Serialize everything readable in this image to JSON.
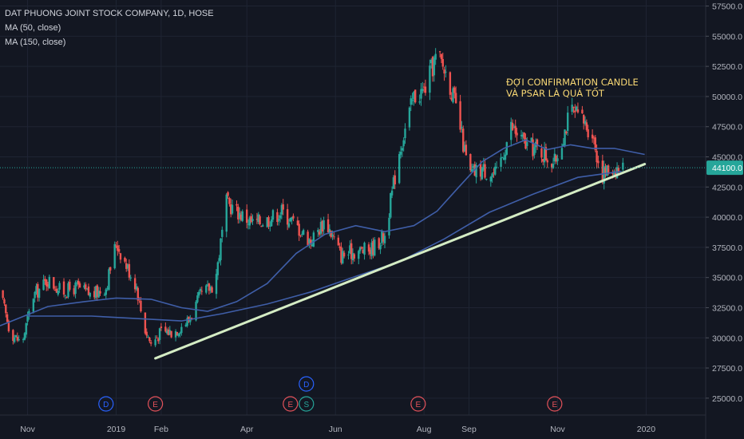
{
  "header": {
    "title": "DAT PHUONG JOINT STOCK COMPANY, 1D, HOSE",
    "indicators": [
      "MA (50, close)",
      "MA (150, close)"
    ]
  },
  "colors": {
    "background": "#131722",
    "grid": "#1f2433",
    "text": "#b2b5be",
    "up": "#26a69a",
    "down": "#ef5350",
    "ma": "#3f5ea8",
    "trendline": "#d4ecc4",
    "annotation": "#f7d774",
    "last_price": "#26a69a"
  },
  "chart_data": {
    "type": "candlestick",
    "title": "DAT PHUONG JOINT STOCK COMPANY, 1D, HOSE",
    "x_tick_labels": [
      "Nov",
      "2019",
      "Feb",
      "Apr",
      "Jun",
      "Aug",
      "Sep",
      "Nov",
      "2020"
    ],
    "x_tick_dates": [
      "2018-11-01",
      "2019-01-01",
      "2019-02-01",
      "2019-04-01",
      "2019-06-01",
      "2019-08-01",
      "2019-09-01",
      "2019-11-01",
      "2020-01-01"
    ],
    "x_range": [
      "2018-10-13",
      "2020-02-11"
    ],
    "y_ticks": [
      25000,
      27500,
      30000,
      32500,
      35000,
      37500,
      40000,
      42500,
      45000,
      47500,
      50000,
      52500,
      55000,
      57500
    ],
    "y_tick_labels": [
      "25000.0",
      "27500.0",
      "30000.0",
      "32500.0",
      "35000.0",
      "37500.0",
      "40000.0",
      "42500.0",
      "45000.0",
      "47500.0",
      "50000.0",
      "52500.0",
      "55000.0",
      "57500.0"
    ],
    "ylim": [
      23600,
      58000
    ],
    "grid": true,
    "last_price": 44100,
    "last_price_label": "44100.0",
    "close_series": {
      "name": "close",
      "dates": [
        "2018-10-13",
        "2018-10-20",
        "2018-10-28",
        "2018-11-05",
        "2018-11-15",
        "2018-11-25",
        "2018-12-05",
        "2018-12-15",
        "2018-12-25",
        "2019-01-01",
        "2019-01-08",
        "2019-01-15",
        "2019-01-20",
        "2019-01-25",
        "2019-02-01",
        "2019-02-10",
        "2019-02-20",
        "2019-02-28",
        "2019-03-10",
        "2019-03-18",
        "2019-03-25",
        "2019-04-05",
        "2019-04-15",
        "2019-04-25",
        "2019-05-05",
        "2019-05-15",
        "2019-05-25",
        "2019-06-05",
        "2019-06-15",
        "2019-06-25",
        "2019-07-05",
        "2019-07-15",
        "2019-07-25",
        "2019-08-01",
        "2019-08-10",
        "2019-08-18",
        "2019-08-25",
        "2019-09-01",
        "2019-09-10",
        "2019-09-20",
        "2019-09-30",
        "2019-10-10",
        "2019-10-20",
        "2019-10-30",
        "2019-11-10",
        "2019-11-18",
        "2019-11-25",
        "2019-12-01",
        "2019-12-08",
        "2019-12-16"
      ],
      "values": [
        33800,
        30500,
        29500,
        33500,
        34800,
        33800,
        34200,
        33500,
        34200,
        37900,
        36000,
        34300,
        31000,
        29500,
        30500,
        30500,
        31500,
        33500,
        34500,
        41200,
        40500,
        39500,
        39800,
        40500,
        39300,
        38000,
        39800,
        36800,
        37200,
        37300,
        38500,
        45500,
        50000,
        50500,
        53500,
        51500,
        48000,
        43500,
        44000,
        43500,
        47500,
        46000,
        45500,
        44500,
        48800,
        48000,
        47000,
        43500,
        44000,
        44100
      ]
    },
    "annotation": "ĐỢI CONFIRMATION CANDLE VÀ PSAR LÀ QUÁ TỐT",
    "trendline": {
      "start": [
        "2019-01-28",
        28300
      ],
      "end": [
        "2019-12-31",
        44400
      ]
    },
    "series": [
      {
        "name": "MA (50, close)",
        "dates": [
          "2018-10-13",
          "2018-11-15",
          "2018-12-10",
          "2019-01-01",
          "2019-01-25",
          "2019-02-15",
          "2019-03-05",
          "2019-03-25",
          "2019-04-15",
          "2019-05-05",
          "2019-05-25",
          "2019-06-15",
          "2019-07-05",
          "2019-07-25",
          "2019-08-10",
          "2019-08-25",
          "2019-09-10",
          "2019-09-25",
          "2019-10-10",
          "2019-10-25",
          "2019-11-10",
          "2019-11-25",
          "2019-12-10",
          "2019-12-31"
        ],
        "values": [
          31000,
          32600,
          33000,
          33300,
          33200,
          32500,
          32200,
          33000,
          34500,
          37000,
          38600,
          39300,
          38800,
          39300,
          40500,
          42500,
          44600,
          45700,
          46400,
          45600,
          46000,
          45700,
          45700,
          45200
        ]
      },
      {
        "name": "MA (150, close)",
        "dates": [
          "2018-11-01",
          "2018-12-15",
          "2019-01-15",
          "2019-02-15",
          "2019-03-15",
          "2019-04-15",
          "2019-05-15",
          "2019-06-15",
          "2019-07-15",
          "2019-08-15",
          "2019-09-15",
          "2019-10-15",
          "2019-11-15",
          "2019-12-15"
        ],
        "values": [
          31800,
          31800,
          31600,
          31400,
          32000,
          32800,
          33800,
          35100,
          36300,
          38200,
          40400,
          41900,
          43300,
          43800
        ]
      }
    ],
    "event_markers": [
      {
        "date": "2018-12-25",
        "label": "D",
        "color": "#2962ff"
      },
      {
        "date": "2019-01-28",
        "label": "E",
        "color": "#e5525a"
      },
      {
        "date": "2019-05-01",
        "label": "E",
        "color": "#e5525a"
      },
      {
        "date": "2019-05-12",
        "label": "D",
        "color": "#2962ff",
        "row": 2
      },
      {
        "date": "2019-05-12",
        "label": "S",
        "color": "#26a69a"
      },
      {
        "date": "2019-07-28",
        "label": "E",
        "color": "#e5525a"
      },
      {
        "date": "2019-10-30",
        "label": "E",
        "color": "#e5525a"
      }
    ]
  }
}
